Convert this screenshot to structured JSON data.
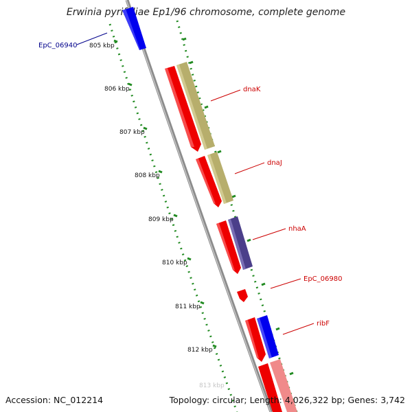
{
  "title": "Erwinia pyrifoliae Ep1/96 chromosome, complete genome",
  "footer": {
    "accession": "Accession: NC_012214",
    "summary": "Topology: circular; Length: 4,026,322 bp; Genes: 3,742"
  },
  "ticks": [
    "805 kbp",
    "806 kbp",
    "807 kbp",
    "808 kbp",
    "809 kbp",
    "810 kbp",
    "811 kbp",
    "812 kbp",
    "813 kbp"
  ],
  "genes": [
    {
      "name": "EpC_06940",
      "color": "#00008b"
    },
    {
      "name": "dnaK",
      "color": "#cc0000"
    },
    {
      "name": "dnaJ",
      "color": "#cc0000"
    },
    {
      "name": "nhaA",
      "color": "#cc0000"
    },
    {
      "name": "EpC_06980",
      "color": "#cc0000"
    },
    {
      "name": "ribF",
      "color": "#cc0000"
    }
  ],
  "colors": {
    "backbone": "#8c8c8c",
    "tick_green": "#228b22",
    "gene_red": "#ee0000",
    "gene_blue": "#0000ee",
    "gene_khaki": "#b7ae6c",
    "gene_purple": "#4b3f8a",
    "gene_pink": "#f08a8a"
  }
}
